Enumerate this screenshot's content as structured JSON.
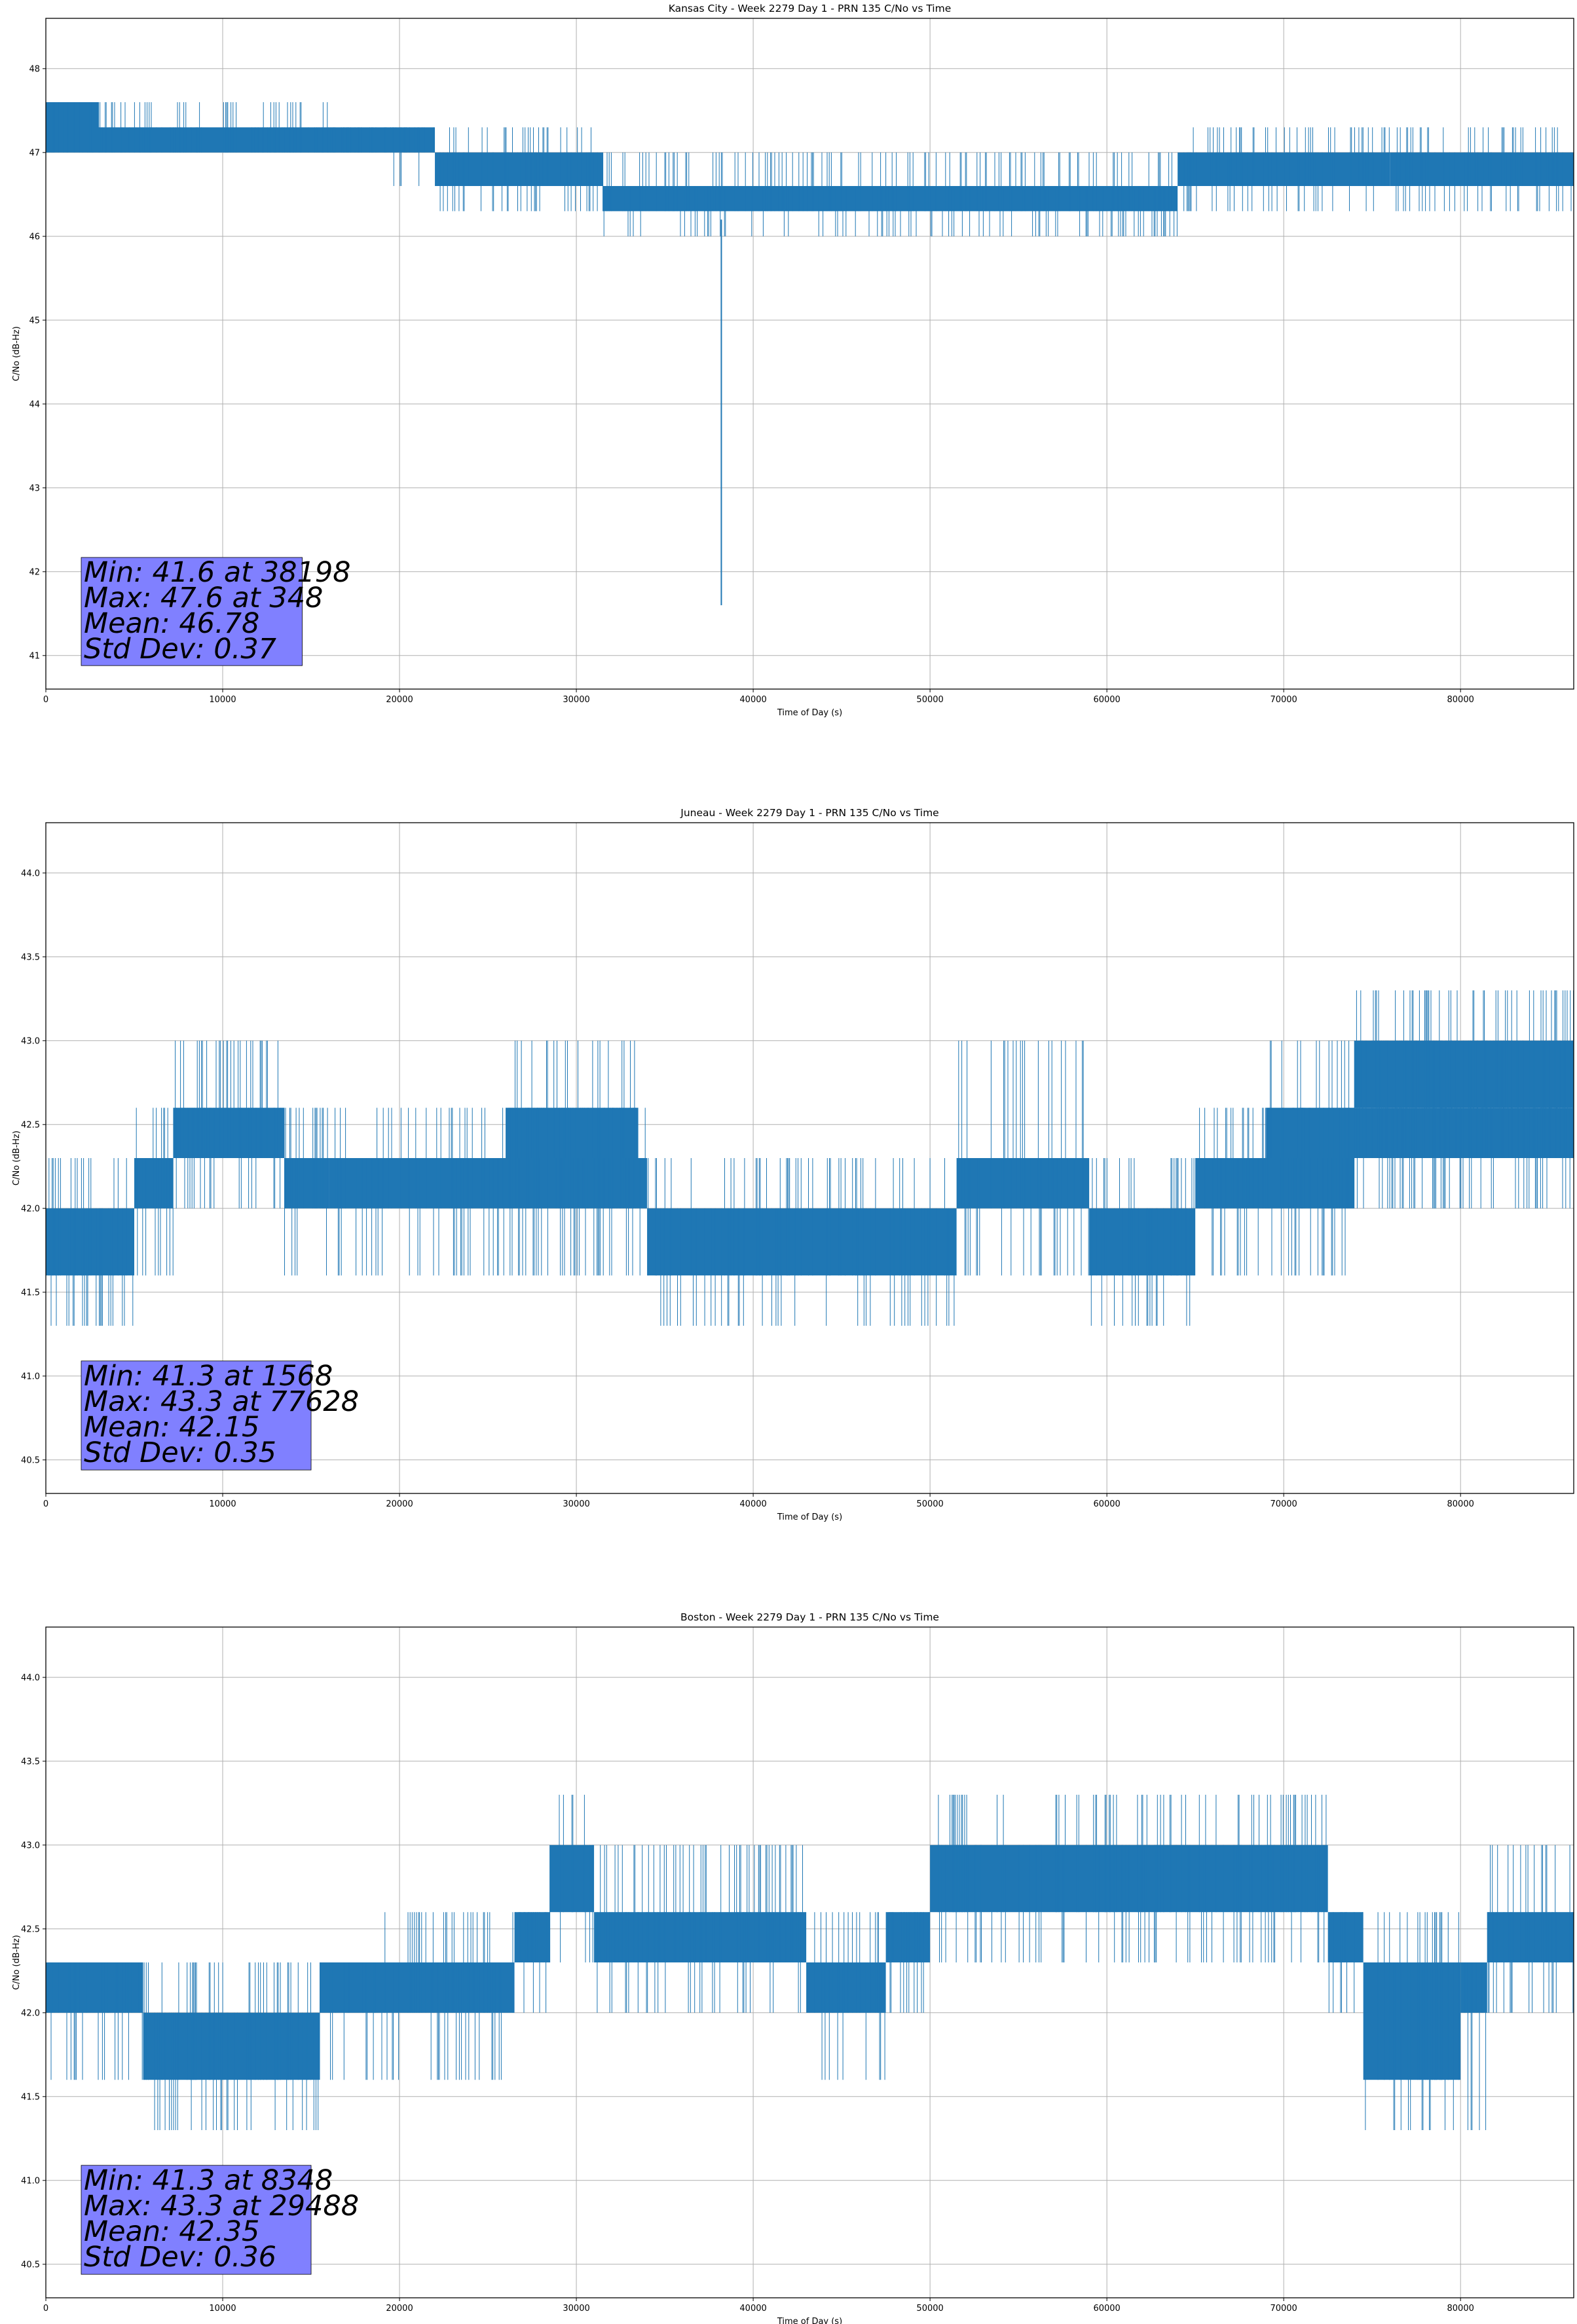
{
  "chart_data": [
    {
      "type": "line",
      "title": "Kansas City - Week 2279 Day 1 - PRN 135 C/No vs Time",
      "xlabel": "Time of Day (s)",
      "ylabel": "C/No (dB-Hz)",
      "xlim": [
        0,
        86400
      ],
      "ylim": [
        40.6,
        48.6
      ],
      "xticks": [
        0,
        10000,
        20000,
        30000,
        40000,
        50000,
        60000,
        70000,
        80000
      ],
      "yticks": [
        41,
        42,
        43,
        44,
        45,
        46,
        47,
        48
      ],
      "ytick_decimals": 0,
      "grid": true,
      "color": "#1f77b4",
      "band_segments": [
        {
          "x": [
            0,
            3000
          ],
          "low": 47.0,
          "high": 47.6,
          "noise_low": 47.0,
          "noise_high": 47.6
        },
        {
          "x": [
            3000,
            16000
          ],
          "low": 47.0,
          "high": 47.3,
          "noise_low": 47.0,
          "noise_high": 47.6
        },
        {
          "x": [
            16000,
            19500
          ],
          "low": 47.0,
          "high": 47.3,
          "noise_low": 47.0,
          "noise_high": 47.3
        },
        {
          "x": [
            19500,
            22000
          ],
          "low": 47.0,
          "high": 47.3,
          "noise_low": 46.6,
          "noise_high": 47.3
        },
        {
          "x": [
            22000,
            31500
          ],
          "low": 46.6,
          "high": 47.0,
          "noise_low": 46.3,
          "noise_high": 47.3
        },
        {
          "x": [
            31500,
            64000
          ],
          "low": 46.3,
          "high": 46.6,
          "noise_low": 46.0,
          "noise_high": 47.0
        },
        {
          "x": [
            64000,
            76000
          ],
          "low": 46.6,
          "high": 47.0,
          "noise_low": 46.3,
          "noise_high": 47.3
        },
        {
          "x": [
            76000,
            86400
          ],
          "low": 46.6,
          "high": 47.0,
          "noise_low": 46.3,
          "noise_high": 47.3
        }
      ],
      "dip": {
        "x": 38198,
        "y": 41.6
      },
      "stats": [
        "Min: 41.6 at 38198",
        "Max: 47.6 at 348",
        "Mean: 46.78",
        "Std Dev: 0.37"
      ],
      "stats_box": {
        "x0": 2000,
        "x1": 14500,
        "y0": 40.88,
        "y1": 42.17
      },
      "stats_color": "#8080ff"
    },
    {
      "type": "line",
      "title": "Juneau - Week 2279 Day 1 - PRN 135 C/No vs Time",
      "xlabel": "Time of Day (s)",
      "ylabel": "C/No (dB-Hz)",
      "xlim": [
        0,
        86400
      ],
      "ylim": [
        40.3,
        44.3
      ],
      "xticks": [
        0,
        10000,
        20000,
        30000,
        40000,
        50000,
        60000,
        70000,
        80000
      ],
      "yticks": [
        40.5,
        41.0,
        41.5,
        42.0,
        42.5,
        43.0,
        43.5,
        44.0
      ],
      "ytick_decimals": 1,
      "grid": true,
      "color": "#1f77b4",
      "band_segments": [
        {
          "x": [
            0,
            5000
          ],
          "low": 41.6,
          "high": 42.0,
          "noise_low": 41.3,
          "noise_high": 42.3
        },
        {
          "x": [
            5000,
            7200
          ],
          "low": 42.0,
          "high": 42.3,
          "noise_low": 41.6,
          "noise_high": 42.6
        },
        {
          "x": [
            7200,
            13500
          ],
          "low": 42.3,
          "high": 42.6,
          "noise_low": 42.0,
          "noise_high": 43.0
        },
        {
          "x": [
            13500,
            16000
          ],
          "low": 42.0,
          "high": 42.3,
          "noise_low": 41.6,
          "noise_high": 42.6
        },
        {
          "x": [
            16000,
            34000
          ],
          "low": 42.0,
          "high": 42.3,
          "noise_low": 41.6,
          "noise_high": 42.6
        },
        {
          "x": [
            26000,
            33500
          ],
          "low": 42.3,
          "high": 42.6,
          "noise_low": 42.0,
          "noise_high": 43.0
        },
        {
          "x": [
            34000,
            51500
          ],
          "low": 41.6,
          "high": 42.0,
          "noise_low": 41.3,
          "noise_high": 42.3
        },
        {
          "x": [
            51500,
            59000
          ],
          "low": 42.0,
          "high": 42.3,
          "noise_low": 41.6,
          "noise_high": 43.0
        },
        {
          "x": [
            59000,
            65000
          ],
          "low": 41.6,
          "high": 42.0,
          "noise_low": 41.3,
          "noise_high": 42.3
        },
        {
          "x": [
            65000,
            74000
          ],
          "low": 42.0,
          "high": 42.3,
          "noise_low": 41.6,
          "noise_high": 42.6
        },
        {
          "x": [
            69000,
            86400
          ],
          "low": 42.3,
          "high": 42.6,
          "noise_low": 42.0,
          "noise_high": 43.0
        },
        {
          "x": [
            74000,
            86400
          ],
          "low": 42.6,
          "high": 43.0,
          "noise_low": 42.3,
          "noise_high": 43.3
        }
      ],
      "dip": null,
      "stats": [
        "Min: 41.3 at 1568",
        "Max: 43.3 at 77628",
        "Mean: 42.15",
        "Std Dev: 0.35"
      ],
      "stats_box": {
        "x0": 2000,
        "x1": 15000,
        "y0": 40.44,
        "y1": 41.09
      },
      "stats_color": "#8080ff"
    },
    {
      "type": "line",
      "title": "Boston - Week 2279 Day 1 - PRN 135 C/No vs Time",
      "xlabel": "Time of Day (s)",
      "ylabel": "C/No (dB-Hz)",
      "xlim": [
        0,
        86400
      ],
      "ylim": [
        40.3,
        44.3
      ],
      "xticks": [
        0,
        10000,
        20000,
        30000,
        40000,
        50000,
        60000,
        70000,
        80000
      ],
      "yticks": [
        40.5,
        41.0,
        41.5,
        42.0,
        42.5,
        43.0,
        43.5,
        44.0
      ],
      "ytick_decimals": 1,
      "grid": true,
      "color": "#1f77b4",
      "band_segments": [
        {
          "x": [
            0,
            5500
          ],
          "low": 42.0,
          "high": 42.3,
          "noise_low": 41.6,
          "noise_high": 42.3
        },
        {
          "x": [
            5500,
            15500
          ],
          "low": 41.6,
          "high": 42.0,
          "noise_low": 41.3,
          "noise_high": 42.3
        },
        {
          "x": [
            15500,
            19000
          ],
          "low": 42.0,
          "high": 42.3,
          "noise_low": 41.6,
          "noise_high": 42.3
        },
        {
          "x": [
            19000,
            26500
          ],
          "low": 42.0,
          "high": 42.3,
          "noise_low": 41.6,
          "noise_high": 42.6
        },
        {
          "x": [
            26500,
            28500
          ],
          "low": 42.3,
          "high": 42.6,
          "noise_low": 42.0,
          "noise_high": 42.6
        },
        {
          "x": [
            28500,
            31000
          ],
          "low": 42.6,
          "high": 43.0,
          "noise_low": 42.3,
          "noise_high": 43.3
        },
        {
          "x": [
            31000,
            43000
          ],
          "low": 42.3,
          "high": 42.6,
          "noise_low": 42.0,
          "noise_high": 43.0
        },
        {
          "x": [
            43000,
            47500
          ],
          "low": 42.0,
          "high": 42.3,
          "noise_low": 41.6,
          "noise_high": 42.6
        },
        {
          "x": [
            47500,
            50000
          ],
          "low": 42.3,
          "high": 42.6,
          "noise_low": 42.0,
          "noise_high": 42.6
        },
        {
          "x": [
            50000,
            72500
          ],
          "low": 42.6,
          "high": 43.0,
          "noise_low": 42.3,
          "noise_high": 43.3
        },
        {
          "x": [
            72500,
            74500
          ],
          "low": 42.3,
          "high": 42.6,
          "noise_low": 42.0,
          "noise_high": 42.6
        },
        {
          "x": [
            74500,
            80000
          ],
          "low": 41.6,
          "high": 42.3,
          "noise_low": 41.3,
          "noise_high": 42.6
        },
        {
          "x": [
            80000,
            81500
          ],
          "low": 42.0,
          "high": 42.3,
          "noise_low": 41.3,
          "noise_high": 42.3
        },
        {
          "x": [
            81500,
            86400
          ],
          "low": 42.3,
          "high": 42.6,
          "noise_low": 42.0,
          "noise_high": 43.0
        }
      ],
      "dip": null,
      "stats": [
        "Min: 41.3 at 8348",
        "Max: 43.3 at 29488",
        "Mean: 42.35",
        "Std Dev: 0.36"
      ],
      "stats_box": {
        "x0": 2000,
        "x1": 15000,
        "y0": 40.44,
        "y1": 41.09
      },
      "stats_color": "#8080ff"
    }
  ]
}
